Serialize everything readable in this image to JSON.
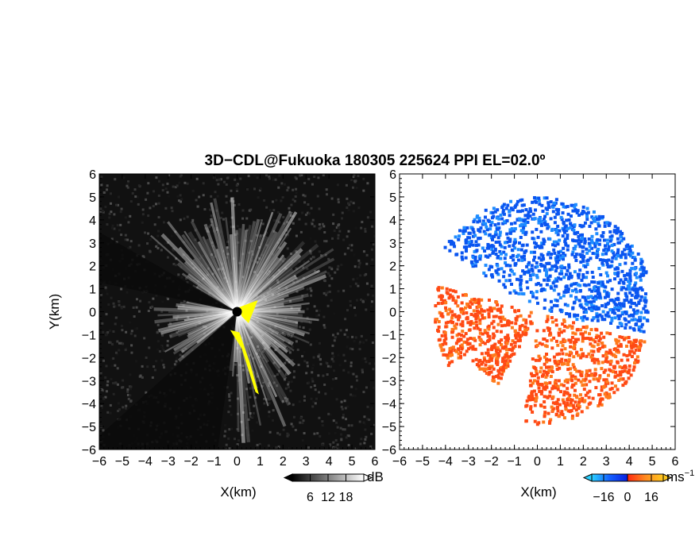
{
  "title": "3D−CDL@Fukuoka 180305 225624 PPI EL=02.0º",
  "colors": {
    "background": "#ffffff",
    "reflectivity_bg": "#111111",
    "highlight": "#ffff00",
    "velocity_negative": "#0a55f0",
    "velocity_positive": "#ff4a14"
  },
  "chart_data": [
    {
      "type": "heatmap",
      "name_on_chart": "",
      "xlabel": "X(km)",
      "ylabel": "Y(km)",
      "xlim": [
        -6,
        6
      ],
      "ylim": [
        -6,
        6
      ],
      "x_ticks": [
        "−6",
        "−5",
        "−4",
        "−3",
        "−2",
        "−1",
        "0",
        "1",
        "2",
        "3",
        "4",
        "5",
        "6"
      ],
      "y_ticks": [
        "6",
        "5",
        "4",
        "3",
        "2",
        "1",
        "0",
        "−1",
        "−2",
        "−3",
        "−4",
        "−5",
        "−6"
      ],
      "colorbar": {
        "unit": "dB",
        "ticks": [
          "6",
          "12",
          "18"
        ],
        "range": [
          0,
          24
        ],
        "colors": [
          "#000000",
          "#ffffff"
        ]
      }
    },
    {
      "type": "heatmap",
      "name_on_chart": "",
      "xlabel": "X(km)",
      "ylabel": "",
      "xlim": [
        -6,
        6
      ],
      "ylim": [
        -6,
        6
      ],
      "x_ticks": [
        "−6",
        "−5",
        "−4",
        "−3",
        "−2",
        "−1",
        "0",
        "1",
        "2",
        "3",
        "4",
        "5",
        "6"
      ],
      "y_ticks": [
        "6",
        "5",
        "4",
        "3",
        "2",
        "1",
        "0",
        "−1",
        "−2",
        "−3",
        "−4",
        "−5",
        "−6"
      ],
      "colorbar": {
        "unit": "ms",
        "unit_exponent": "−1",
        "ticks": [
          "−16",
          "0",
          "16"
        ],
        "range": [
          -24,
          24
        ],
        "colors": [
          "#2ad0ff",
          "#1560ff",
          "#0a20e0",
          "#ff2a10",
          "#ff8a20",
          "#ffc820"
        ]
      }
    }
  ]
}
